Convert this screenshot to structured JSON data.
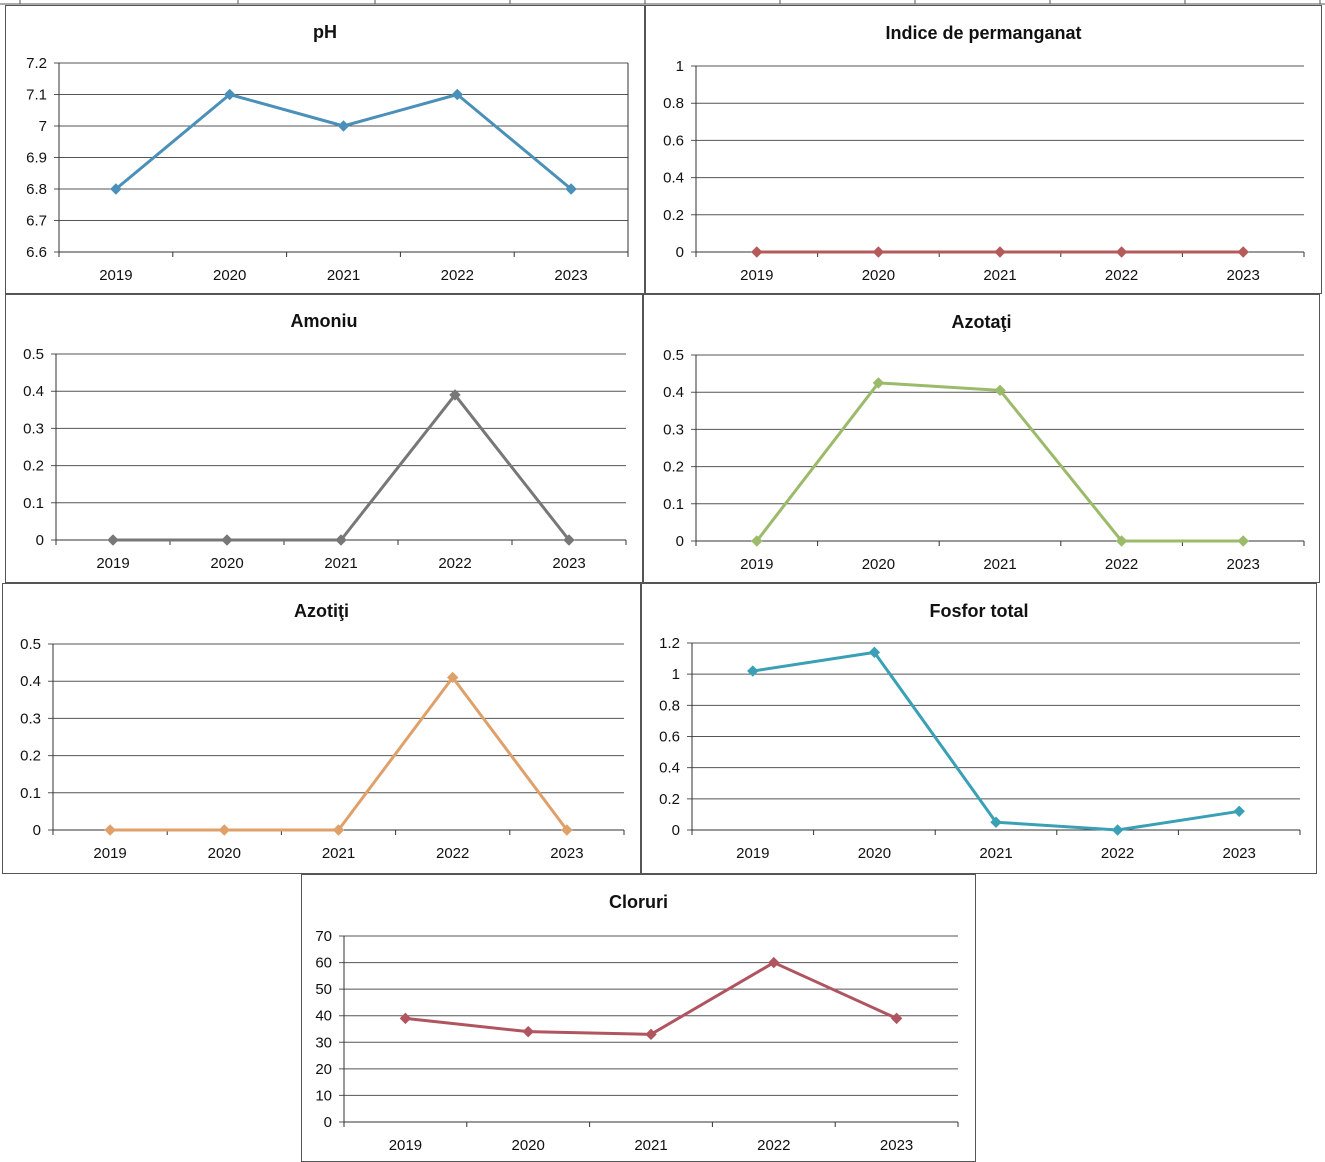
{
  "chart_data": [
    {
      "type": "line",
      "title": "pH",
      "categories": [
        "2019",
        "2020",
        "2021",
        "2022",
        "2023"
      ],
      "values": [
        6.8,
        7.1,
        7.0,
        7.1,
        6.8
      ],
      "ylim": [
        6.6,
        7.2
      ],
      "yticks": [
        "6.6",
        "6.7",
        "6.8",
        "6.9",
        "7",
        "7.1",
        "7.2"
      ],
      "grid": true,
      "color": "#4a90b8"
    },
    {
      "type": "line",
      "title": "Indice de permanganat",
      "categories": [
        "2019",
        "2020",
        "2021",
        "2022",
        "2023"
      ],
      "values": [
        0,
        0,
        0,
        0,
        0
      ],
      "ylim": [
        0,
        1
      ],
      "yticks": [
        "0",
        "0.2",
        "0.4",
        "0.6",
        "0.8",
        "1"
      ],
      "grid": true,
      "color": "#b55a5a"
    },
    {
      "type": "line",
      "title": "Amoniu",
      "categories": [
        "2019",
        "2020",
        "2021",
        "2022",
        "2023"
      ],
      "values": [
        0,
        0,
        0,
        0.39,
        0
      ],
      "ylim": [
        0,
        0.5
      ],
      "yticks": [
        "0",
        "0.1",
        "0.2",
        "0.3",
        "0.4",
        "0.5"
      ],
      "grid": true,
      "color": "#777777"
    },
    {
      "type": "line",
      "title": "Azotaţi",
      "categories": [
        "2019",
        "2020",
        "2021",
        "2022",
        "2023"
      ],
      "values": [
        0,
        0.425,
        0.405,
        0,
        0
      ],
      "ylim": [
        0,
        0.5
      ],
      "yticks": [
        "0",
        "0.1",
        "0.2",
        "0.3",
        "0.4",
        "0.5"
      ],
      "grid": true,
      "color": "#9bbb6a"
    },
    {
      "type": "line",
      "title": "Azotiţi",
      "categories": [
        "2019",
        "2020",
        "2021",
        "2022",
        "2023"
      ],
      "values": [
        0,
        0,
        0,
        0.41,
        0
      ],
      "ylim": [
        0,
        0.5
      ],
      "yticks": [
        "0",
        "0.1",
        "0.2",
        "0.3",
        "0.4",
        "0.5"
      ],
      "grid": true,
      "color": "#e0a06a"
    },
    {
      "type": "line",
      "title": "Fosfor total",
      "categories": [
        "2019",
        "2020",
        "2021",
        "2022",
        "2023"
      ],
      "values": [
        1.02,
        1.14,
        0.05,
        0.0,
        0.12
      ],
      "ylim": [
        0,
        1.2
      ],
      "yticks": [
        "0",
        "0.2",
        "0.4",
        "0.6",
        "0.8",
        "1",
        "1.2"
      ],
      "grid": true,
      "color": "#3aa0b5"
    },
    {
      "type": "line",
      "title": "Cloruri",
      "categories": [
        "2019",
        "2020",
        "2021",
        "2022",
        "2023"
      ],
      "values": [
        39,
        34,
        33,
        60,
        39
      ],
      "ylim": [
        0,
        70
      ],
      "yticks": [
        "0",
        "10",
        "20",
        "30",
        "40",
        "50",
        "60",
        "70"
      ],
      "grid": true,
      "color": "#b05560"
    }
  ]
}
